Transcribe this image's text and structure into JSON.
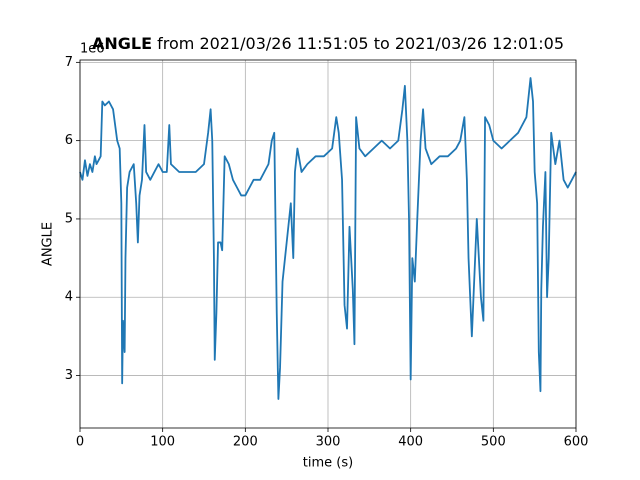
{
  "chart_data": {
    "type": "line",
    "title": {
      "bold": "ANGLE",
      "rest": " from 2021/03/26 11:51:05 to 2021/03/26 12:01:05"
    },
    "offset_label": "1e6",
    "x_label": "time (s)",
    "y_label": "ANGLE",
    "xlim": [
      0,
      600
    ],
    "xticks": [
      0,
      100,
      200,
      300,
      400,
      500,
      600
    ],
    "ylim": [
      2.33,
      7.03
    ],
    "yticks": [
      3,
      4,
      5,
      6,
      7
    ],
    "grid": true,
    "series": [
      {
        "name": "ANGLE",
        "color": "#1f77b4",
        "x": [
          0,
          3,
          6,
          9,
          12,
          15,
          18,
          20,
          25,
          27,
          30,
          35,
          40,
          45,
          48,
          50,
          51,
          52,
          54,
          55,
          57,
          60,
          65,
          68,
          70,
          72,
          75,
          78,
          80,
          85,
          90,
          95,
          100,
          105,
          108,
          110,
          120,
          130,
          140,
          150,
          155,
          158,
          160,
          162,
          163,
          165,
          167,
          170,
          172,
          175,
          180,
          185,
          190,
          195,
          200,
          205,
          210,
          218,
          228,
          232,
          235,
          238,
          240,
          242,
          245,
          250,
          255,
          258,
          260,
          263,
          268,
          275,
          285,
          295,
          305,
          310,
          313,
          317,
          320,
          323,
          326,
          330,
          332,
          334,
          338,
          345,
          355,
          365,
          375,
          385,
          390,
          393,
          396,
          398,
          400,
          402,
          405,
          408,
          412,
          415,
          418,
          425,
          435,
          445,
          455,
          460,
          465,
          468,
          470,
          474,
          478,
          480,
          485,
          488,
          490,
          495,
          500,
          510,
          520,
          530,
          540,
          545,
          548,
          550,
          553,
          555,
          557,
          558,
          560,
          563,
          565,
          567,
          570,
          575,
          580,
          585,
          590,
          595,
          600
        ],
        "values": [
          5.6,
          5.5,
          5.75,
          5.55,
          5.7,
          5.6,
          5.8,
          5.7,
          5.8,
          6.5,
          6.45,
          6.5,
          6.4,
          6.0,
          5.9,
          5.2,
          2.9,
          3.7,
          3.3,
          4.5,
          5.4,
          5.6,
          5.7,
          5.2,
          4.7,
          5.3,
          5.5,
          6.2,
          5.6,
          5.5,
          5.6,
          5.7,
          5.6,
          5.6,
          6.2,
          5.7,
          5.6,
          5.6,
          5.6,
          5.7,
          6.1,
          6.4,
          6.0,
          4.5,
          3.2,
          3.8,
          4.7,
          4.7,
          4.6,
          5.8,
          5.7,
          5.5,
          5.4,
          5.3,
          5.3,
          5.4,
          5.5,
          5.5,
          5.7,
          6.0,
          6.1,
          3.8,
          2.7,
          3.1,
          4.2,
          4.7,
          5.2,
          4.5,
          5.6,
          5.9,
          5.6,
          5.7,
          5.8,
          5.8,
          5.9,
          6.3,
          6.1,
          5.5,
          3.9,
          3.6,
          4.9,
          4.1,
          3.4,
          6.3,
          5.9,
          5.8,
          5.9,
          6.0,
          5.9,
          6.0,
          6.4,
          6.7,
          6.0,
          5.0,
          2.95,
          4.5,
          4.2,
          5.0,
          6.0,
          6.4,
          5.9,
          5.7,
          5.8,
          5.8,
          5.9,
          6.0,
          6.3,
          5.5,
          4.5,
          3.5,
          4.5,
          5.0,
          4.0,
          3.7,
          6.3,
          6.2,
          6.0,
          5.9,
          6.0,
          6.1,
          6.3,
          6.8,
          6.5,
          5.6,
          5.2,
          3.3,
          2.8,
          4.1,
          4.9,
          5.6,
          4.0,
          4.5,
          6.1,
          5.7,
          6.0,
          5.5,
          5.4,
          5.5,
          5.6
        ]
      }
    ]
  }
}
